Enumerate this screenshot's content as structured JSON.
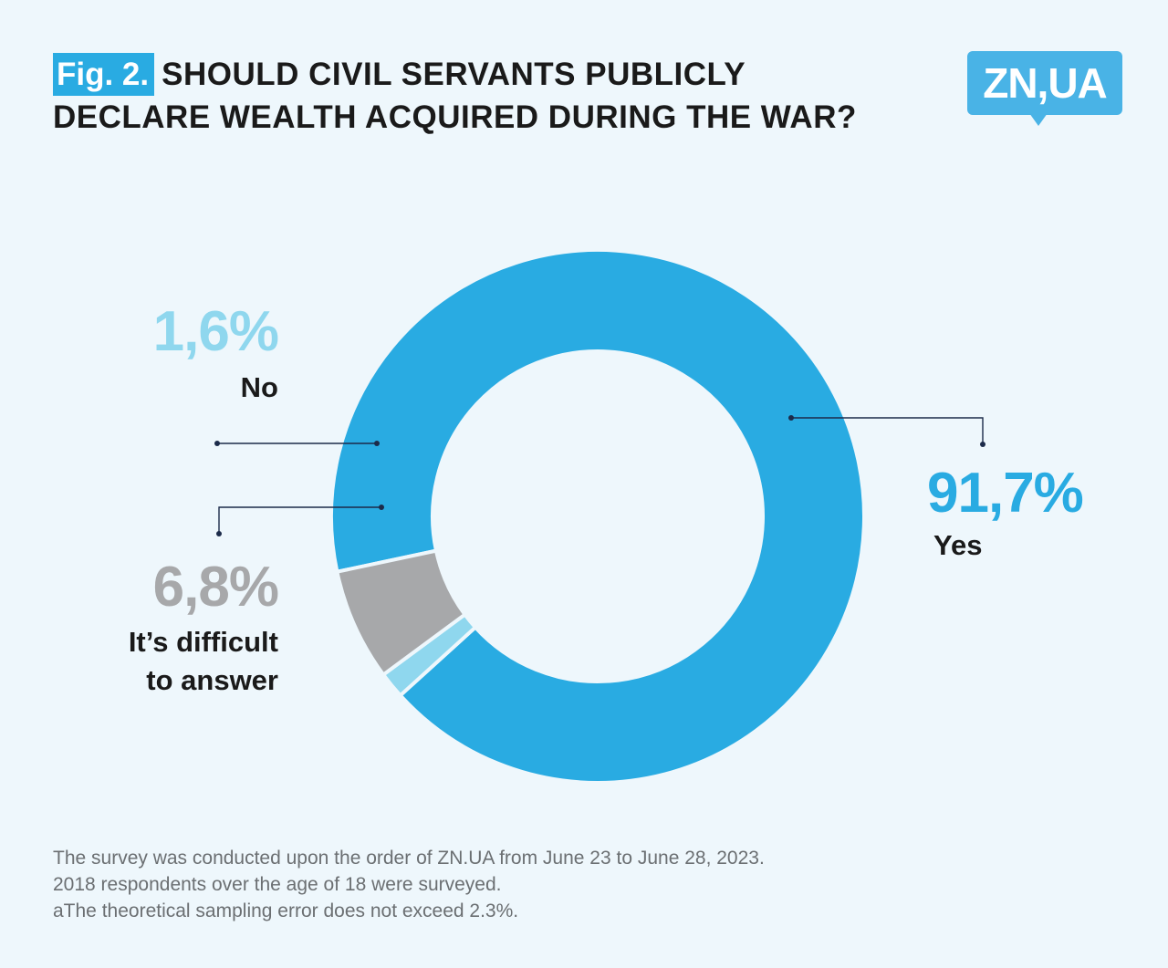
{
  "header": {
    "fig_label": "Fig. 2.",
    "title_line1": "SHOULD CIVIL SERVANTS PUBLICLY",
    "title_line2": "DECLARE WEALTH ACQUIRED DURING THE WAR?"
  },
  "logo": {
    "text": "ZN,UA",
    "color": "#49b3e6"
  },
  "chart_data": {
    "type": "pie",
    "variant": "donut",
    "start_at": "bottom-left, running clockwise",
    "slices": [
      {
        "label": "Yes",
        "value_text": "91,7%",
        "value": 91.7,
        "color": "#29abe2"
      },
      {
        "label": "No",
        "value_text": "1,6%",
        "value": 1.6,
        "color": "#8fd7ee"
      },
      {
        "label": "It’s difficult to answer",
        "label_line1": "It’s difficult",
        "label_line2": "to answer",
        "value_text": "6,8%",
        "value": 6.8,
        "color": "#a7a8aa"
      }
    ],
    "legend": "none (labels placed beside slices with leader lines)"
  },
  "footnote": {
    "line1": "The survey was conducted upon the order of ZN.UA from June 23 to June 28, 2023.",
    "line2": "2018 respondents over the age of 18 were surveyed.",
    "line3": "aThe theoretical sampling error does not exceed 2.3%."
  },
  "colors": {
    "background": "#eef7fc",
    "accent": "#29abe2",
    "leader_line": "#1c2b4a",
    "footnote_text": "#6b6f72"
  }
}
